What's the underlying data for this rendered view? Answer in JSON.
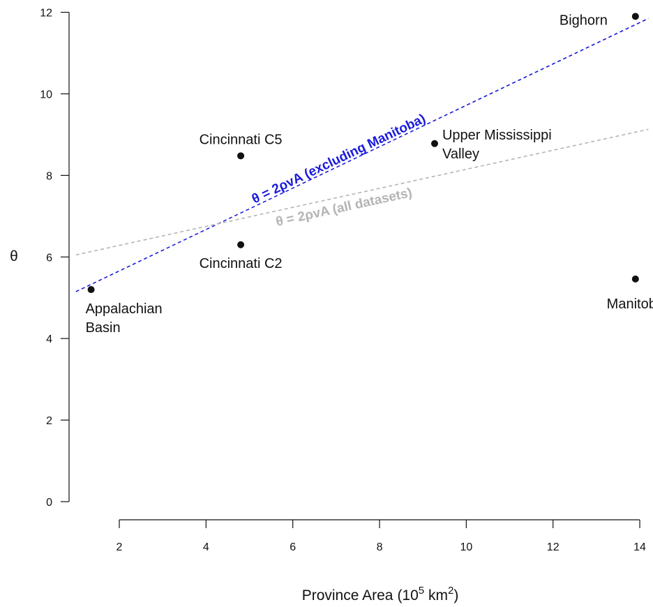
{
  "chart_data": {
    "type": "scatter",
    "title": "",
    "xlabel": "Province Area",
    "xlabel_unit_prefix": "(10",
    "xlabel_unit_exp": "5",
    "xlabel_unit_mid": " km",
    "xlabel_unit_exp2": "2",
    "xlabel_unit_suffix": ")",
    "ylabel": "θ",
    "xlim": [
      1.5,
      14.0
    ],
    "ylim": [
      0,
      12
    ],
    "xticks": [
      2,
      4,
      6,
      8,
      10,
      12,
      14
    ],
    "yticks": [
      0,
      2,
      4,
      6,
      8,
      10,
      12
    ],
    "grid": false,
    "points": [
      {
        "label_lines": [
          "Appalachian",
          "Basin"
        ],
        "x": 1.35,
        "y": 5.2
      },
      {
        "label_lines": [
          "Cincinnati C5"
        ],
        "x": 4.8,
        "y": 8.48
      },
      {
        "label_lines": [
          "Cincinnati C2"
        ],
        "x": 4.8,
        "y": 6.3
      },
      {
        "label_lines": [
          "Upper Mississippi",
          "Valley"
        ],
        "x": 9.27,
        "y": 8.78
      },
      {
        "label_lines": [
          "Bighorn"
        ],
        "x": 13.9,
        "y": 11.9
      },
      {
        "label_lines": [
          "Manitoba"
        ],
        "x": 13.9,
        "y": 5.46
      }
    ],
    "fit_lines": [
      {
        "label": "θ = 2ρvA (excluding Manitoba)",
        "color": "#1a1adb",
        "x": [
          1.0,
          14.2
        ],
        "y": [
          5.15,
          11.85
        ]
      },
      {
        "label": "θ = 2ρvA (all datasets)",
        "color": "#b4b4b4",
        "x": [
          1.0,
          14.2
        ],
        "y": [
          6.05,
          9.13
        ]
      }
    ]
  }
}
